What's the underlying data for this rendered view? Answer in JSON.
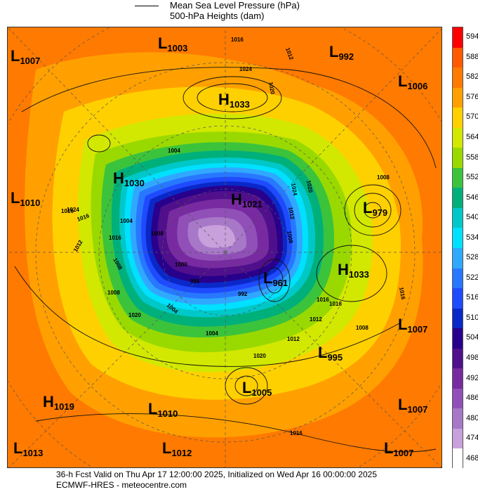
{
  "legend": {
    "line1": "Mean Sea Level Pressure (hPa)",
    "line2": "500-hPa Heights (dam)"
  },
  "colorbar": {
    "labels": [
      "594",
      "588",
      "582",
      "576",
      "570",
      "564",
      "558",
      "552",
      "546",
      "540",
      "534",
      "528",
      "522",
      "516",
      "510",
      "504",
      "498",
      "492",
      "486",
      "480",
      "474",
      "468"
    ],
    "colors": [
      "#ff0000",
      "#ff5a00",
      "#ff7a00",
      "#ffa000",
      "#ffd000",
      "#d2e800",
      "#9ad900",
      "#3cc33c",
      "#00b07a",
      "#00c8c8",
      "#00e0ff",
      "#30a8ff",
      "#2878ff",
      "#1f4bff",
      "#0a28c8",
      "#28008c",
      "#50108c",
      "#782aa0",
      "#9050b8",
      "#a878c8",
      "#c8a0dc",
      "#ffffff"
    ]
  },
  "map_labels": {
    "pressure_systems": [
      {
        "type": "L",
        "value": "1007"
      },
      {
        "type": "L",
        "value": "1003"
      },
      {
        "type": "L",
        "value": "992"
      },
      {
        "type": "L",
        "value": "1006"
      },
      {
        "type": "H",
        "value": "1033"
      },
      {
        "type": "H",
        "value": "1030"
      },
      {
        "type": "L",
        "value": "1010"
      },
      {
        "type": "H",
        "value": "1021"
      },
      {
        "type": "L",
        "value": "979"
      },
      {
        "type": "L",
        "value": "961"
      },
      {
        "type": "H",
        "value": "1033"
      },
      {
        "type": "L",
        "value": "1007"
      },
      {
        "type": "L",
        "value": "995"
      },
      {
        "type": "L",
        "value": "1005"
      },
      {
        "type": "H",
        "value": "1019"
      },
      {
        "type": "L",
        "value": "1010"
      },
      {
        "type": "L",
        "value": "1007"
      },
      {
        "type": "L",
        "value": "1013"
      },
      {
        "type": "L",
        "value": "1012"
      },
      {
        "type": "L",
        "value": "1007"
      }
    ],
    "isobar_labels": [
      "1016",
      "1012",
      "1024",
      "1020",
      "1008",
      "1004",
      "1016",
      "1020",
      "1024",
      "1012",
      "1008",
      "1016",
      "1016",
      "1004",
      "1008",
      "1012",
      "1016",
      "1020",
      "1012",
      "1008",
      "1016",
      "1024",
      "1012",
      "1008",
      "1004",
      "1020",
      "1016",
      "1016",
      "1008",
      "1004",
      "1000",
      "996",
      "992"
    ]
  },
  "footer": {
    "line1": "36-h Fcst Valid on Thu Apr 17 12:00:00 2025, Initialized on Wed Apr 16 00:00:00 2025",
    "line2": "ECMWF-HRES - meteocentre.com"
  }
}
